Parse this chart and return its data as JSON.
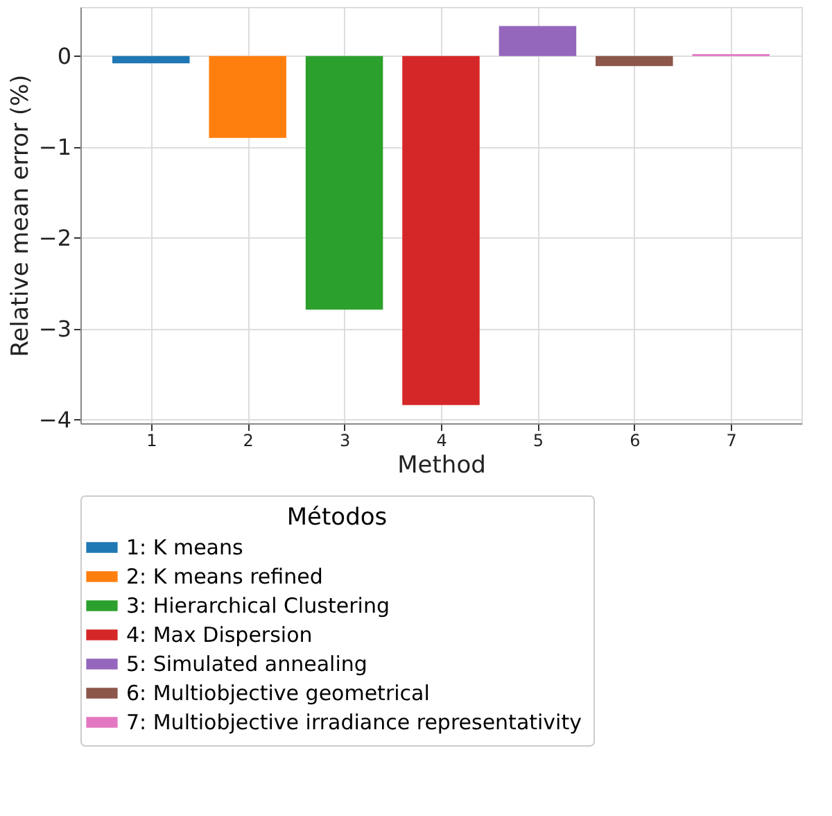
{
  "chart_data": {
    "type": "bar",
    "xlabel": "Method",
    "ylabel": "Relative mean error (%)",
    "legend_title": "Métodos",
    "xlim": [
      0.27,
      7.73
    ],
    "xticks": [
      1,
      2,
      3,
      4,
      5,
      6,
      7
    ],
    "ylim": [
      -4.04,
      0.54
    ],
    "yticks": [
      -4,
      -3,
      -2,
      -1,
      0
    ],
    "grid": true,
    "legend": "bottom",
    "series": [
      {
        "name": "1: K means",
        "color": "#1f77b4",
        "x": [
          1
        ],
        "values": [
          -0.08
        ]
      },
      {
        "name": "2: K means refined",
        "color": "#ff7f0e",
        "x": [
          2
        ],
        "values": [
          -0.9
        ]
      },
      {
        "name": "3: Hierarchical Clustering",
        "color": "#2ca02c",
        "x": [
          3
        ],
        "values": [
          -2.79
        ]
      },
      {
        "name": "4: Max Dispersion",
        "color": "#d62728",
        "x": [
          4
        ],
        "values": [
          -3.84
        ]
      },
      {
        "name": "5: Simulated annealing",
        "color": "#9467bd",
        "x": [
          5
        ],
        "values": [
          0.33
        ]
      },
      {
        "name": "6: Multiobjective geometrical",
        "color": "#8c564b",
        "x": [
          6
        ],
        "values": [
          -0.11
        ]
      },
      {
        "name": "7: Multiobjective irradiance representativity",
        "color": "#e377c2",
        "x": [
          7
        ],
        "values": [
          0.02
        ]
      }
    ]
  }
}
